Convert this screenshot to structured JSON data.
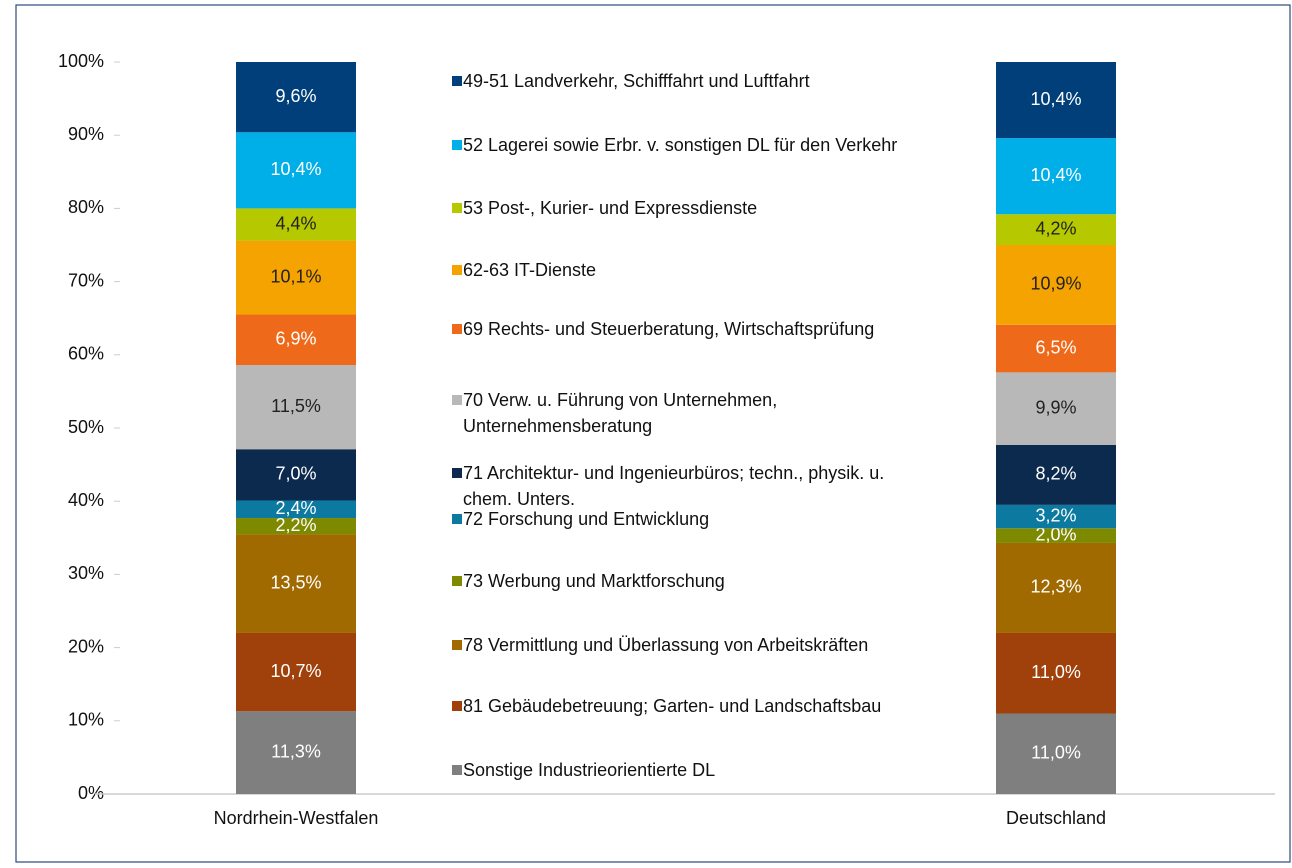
{
  "chart_data": {
    "type": "bar",
    "stacked": true,
    "categories": [
      "Nordrhein-Westfalen",
      "Deutschland"
    ],
    "ylim": [
      0,
      100
    ],
    "yticks": [
      {
        "value": 0,
        "label": "0%"
      },
      {
        "value": 10,
        "label": "10%"
      },
      {
        "value": 20,
        "label": "20%"
      },
      {
        "value": 30,
        "label": "30%"
      },
      {
        "value": 40,
        "label": "40%"
      },
      {
        "value": 50,
        "label": "50%"
      },
      {
        "value": 60,
        "label": "60%"
      },
      {
        "value": 70,
        "label": "70%"
      },
      {
        "value": 80,
        "label": "80%"
      },
      {
        "value": 90,
        "label": "90%"
      },
      {
        "value": 100,
        "label": "100%"
      }
    ],
    "legend": "center",
    "series": [
      {
        "name": "Sonstige Industrieorientierte DL",
        "color": "#7f7f7f",
        "values": [
          11.3,
          11.0
        ],
        "value_labels": [
          "11,3%",
          "11,0%"
        ]
      },
      {
        "name": "81 Gebäudebetreuung; Garten- und Landschaftsbau",
        "color": "#a0400a",
        "values": [
          10.7,
          11.0
        ],
        "value_labels": [
          "10,7%",
          "11,0%"
        ]
      },
      {
        "name": "78 Vermittlung und Überlassung von Arbeitskräften",
        "color": "#a06a00",
        "values": [
          13.5,
          12.3
        ],
        "value_labels": [
          "13,5%",
          "12,3%"
        ]
      },
      {
        "name": "73 Werbung und Marktforschung",
        "color": "#7d8a00",
        "values": [
          2.2,
          2.0
        ],
        "value_labels": [
          "2,2%",
          "2,0%"
        ]
      },
      {
        "name": "72 Forschung und Entwicklung",
        "color": "#0c7aa0",
        "values": [
          2.4,
          3.2
        ],
        "value_labels": [
          "2,4%",
          "3,2%"
        ]
      },
      {
        "name": "71 Architektur- und Ingenieurbüros; techn., physik. u. chem. Unters.",
        "color": "#0c2a4e",
        "values": [
          7.0,
          8.2
        ],
        "value_labels": [
          "7,0%",
          "8,2%"
        ]
      },
      {
        "name": "70 Verw. u. Führung von Unternehmen, Unternehmensberatung",
        "color": "#b8b8b8",
        "values": [
          11.5,
          9.9
        ],
        "value_labels": [
          "11,5%",
          "9,9%"
        ]
      },
      {
        "name": "69 Rechts- und Steuerberatung, Wirtschaftsprüfung",
        "color": "#ee6a1a",
        "values": [
          6.9,
          6.5
        ],
        "value_labels": [
          "6,9%",
          "6,5%"
        ]
      },
      {
        "name": "62-63 IT-Dienste",
        "color": "#f5a300",
        "values": [
          10.1,
          10.9
        ],
        "value_labels": [
          "10,1%",
          "10,9%"
        ]
      },
      {
        "name": "53 Post-, Kurier- und Expressdienste",
        "color": "#b5c800",
        "values": [
          4.4,
          4.2
        ],
        "value_labels": [
          "4,4%",
          "4,2%"
        ]
      },
      {
        "name": "52 Lagerei sowie Erbr. v. sonstigen DL für den Verkehr",
        "color": "#00aee8",
        "values": [
          10.4,
          10.4
        ],
        "value_labels": [
          "10,4%",
          "10,4%"
        ]
      },
      {
        "name": "49-51 Landverkehr, Schifffahrt und Luftfahrt",
        "color": "#003f7a",
        "values": [
          9.6,
          10.4
        ],
        "value_labels": [
          "9,6%",
          "10,4%"
        ]
      }
    ]
  }
}
